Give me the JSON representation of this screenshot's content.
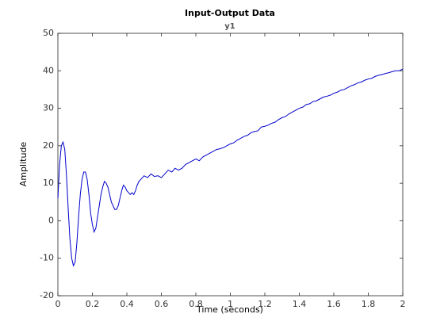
{
  "chart_data": {
    "type": "line",
    "title": "Input-Output Data",
    "subtitle": "y1",
    "xlabel": "Time (seconds)",
    "ylabel": "Amplitude",
    "xlim": [
      0,
      2
    ],
    "ylim": [
      -20,
      50
    ],
    "xticks": [
      0,
      0.2,
      0.4,
      0.6,
      0.8,
      1,
      1.2,
      1.4,
      1.6,
      1.8,
      2
    ],
    "yticks": [
      -20,
      -10,
      0,
      10,
      20,
      30,
      40,
      50
    ],
    "grid": false,
    "x": [
      0,
      0.01,
      0.02,
      0.03,
      0.04,
      0.05,
      0.06,
      0.07,
      0.08,
      0.09,
      0.1,
      0.11,
      0.12,
      0.13,
      0.14,
      0.15,
      0.16,
      0.17,
      0.18,
      0.19,
      0.2,
      0.21,
      0.22,
      0.23,
      0.24,
      0.25,
      0.26,
      0.27,
      0.28,
      0.29,
      0.3,
      0.31,
      0.32,
      0.33,
      0.34,
      0.35,
      0.36,
      0.37,
      0.38,
      0.39,
      0.4,
      0.41,
      0.42,
      0.43,
      0.44,
      0.45,
      0.46,
      0.47,
      0.48,
      0.49,
      0.5,
      0.52,
      0.54,
      0.56,
      0.58,
      0.6,
      0.62,
      0.64,
      0.66,
      0.68,
      0.7,
      0.72,
      0.74,
      0.76,
      0.78,
      0.8,
      0.82,
      0.84,
      0.86,
      0.88,
      0.9,
      0.92,
      0.94,
      0.96,
      0.98,
      1,
      1.02,
      1.04,
      1.06,
      1.08,
      1.1,
      1.12,
      1.14,
      1.16,
      1.18,
      1.2,
      1.22,
      1.24,
      1.26,
      1.28,
      1.3,
      1.32,
      1.34,
      1.36,
      1.38,
      1.4,
      1.42,
      1.44,
      1.46,
      1.48,
      1.5,
      1.52,
      1.54,
      1.56,
      1.58,
      1.6,
      1.62,
      1.64,
      1.66,
      1.68,
      1.7,
      1.72,
      1.74,
      1.76,
      1.78,
      1.8,
      1.82,
      1.84,
      1.86,
      1.88,
      1.9,
      1.92,
      1.94,
      1.96,
      1.98,
      2
    ],
    "series": [
      {
        "name": "y1",
        "color": "#0000cc",
        "values": [
          6,
          15,
          20,
          21,
          19,
          12,
          3,
          -5,
          -10,
          -12,
          -11,
          -6,
          1,
          7,
          11,
          13,
          13,
          11,
          7,
          2,
          -1,
          -3,
          -2,
          1,
          4,
          7,
          9,
          10.5,
          10,
          9,
          7,
          5,
          4,
          3,
          3,
          4,
          6,
          8,
          9.5,
          9,
          8,
          7.5,
          7,
          7.5,
          7,
          8,
          9.5,
          10.5,
          11,
          11.5,
          12,
          11.5,
          12.5,
          11.8,
          12,
          11.5,
          12.5,
          13.5,
          13,
          14,
          13.5,
          14,
          15,
          15.5,
          16,
          16.5,
          16,
          17,
          17.5,
          18,
          18.5,
          19,
          19.2,
          19.5,
          20,
          20.5,
          20.8,
          21.5,
          22,
          22.5,
          22.8,
          23.5,
          23.8,
          24,
          25,
          25.2,
          25.5,
          26,
          26.3,
          27,
          27.5,
          27.8,
          28.5,
          29,
          29.5,
          30,
          30.3,
          31,
          31.2,
          31.8,
          32,
          32.5,
          33,
          33.2,
          33.5,
          34,
          34.3,
          34.8,
          35,
          35.5,
          36,
          36.3,
          36.8,
          37,
          37.5,
          37.8,
          38,
          38.5,
          38.8,
          39,
          39.3,
          39.5,
          39.8,
          40,
          40,
          40.5
        ]
      }
    ]
  }
}
